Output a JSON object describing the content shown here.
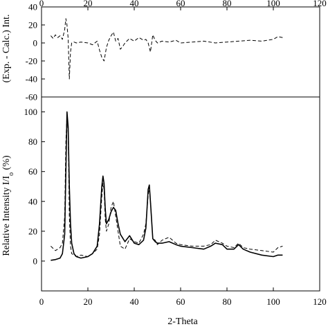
{
  "chart_data": [
    {
      "type": "line",
      "panel": "top",
      "ylabel": "(Exp. - Calc.) Int.",
      "xlabel": "",
      "xlim": [
        0,
        120
      ],
      "ylim": [
        -60,
        40
      ],
      "x_ticks": [
        "0",
        "20",
        "40",
        "60",
        "80",
        "100",
        "120"
      ],
      "y_ticks": [
        "40",
        "20",
        "0",
        "-20",
        "-40",
        "-60"
      ],
      "x_tick_position": "top",
      "grid": false,
      "series": [
        {
          "style": "dashed",
          "x": [
            4,
            5,
            6,
            7,
            8,
            9,
            10,
            10.5,
            11,
            11.5,
            12,
            12.5,
            13,
            14,
            15,
            17,
            20,
            22,
            24,
            25,
            26,
            27,
            28,
            29,
            30,
            31,
            32,
            33,
            34,
            35,
            36,
            38,
            40,
            42,
            44,
            45,
            46,
            47,
            48,
            49,
            50,
            52,
            55,
            58,
            60,
            65,
            70,
            75,
            80,
            85,
            90,
            95,
            100,
            102,
            104
          ],
          "y": [
            8,
            5,
            9,
            6,
            8,
            4,
            15,
            27,
            20,
            5,
            -40,
            -10,
            0,
            1,
            0,
            1,
            0,
            -2,
            2,
            -8,
            -16,
            -20,
            -5,
            3,
            8,
            12,
            2,
            5,
            -7,
            -4,
            0,
            5,
            2,
            6,
            3,
            4,
            0,
            -10,
            9,
            3,
            0,
            2,
            1,
            3,
            0,
            1,
            2,
            0,
            1,
            2,
            3,
            2,
            4,
            7,
            6
          ]
        }
      ]
    },
    {
      "type": "line",
      "panel": "bottom",
      "ylabel": "Relative Intensity I/I",
      "ylabel_subscript": "o",
      "ylabel_suffix": " (%)",
      "xlabel": "2-Theta",
      "xlim": [
        0,
        120
      ],
      "ylim": [
        -20,
        110
      ],
      "x_ticks": [
        "0",
        "20",
        "40",
        "60",
        "80",
        "100",
        "120"
      ],
      "y_ticks": [
        "100",
        "80",
        "60",
        "40",
        "20",
        "0"
      ],
      "grid": false,
      "series": [
        {
          "style": "solid",
          "x": [
            4,
            6,
            8,
            9,
            10,
            10.5,
            11,
            11.5,
            12,
            12.5,
            13,
            14,
            15,
            17,
            20,
            22,
            24,
            25,
            26,
            26.5,
            27,
            27.5,
            28,
            29,
            30,
            31,
            32,
            33,
            34,
            36,
            38,
            40,
            42,
            44,
            45,
            46,
            46.5,
            47,
            48,
            49,
            50,
            52,
            55,
            58,
            60,
            65,
            70,
            73,
            75,
            78,
            80,
            83,
            85,
            87,
            90,
            95,
            100,
            102,
            104
          ],
          "y": [
            0.5,
            1,
            2,
            5,
            18,
            60,
            100,
            90,
            50,
            25,
            12,
            5,
            3,
            2,
            3,
            5,
            10,
            25,
            50,
            57,
            52,
            35,
            25,
            28,
            33,
            36,
            34,
            25,
            18,
            13,
            17,
            12,
            11,
            14,
            22,
            48,
            51,
            40,
            15,
            13,
            12,
            12,
            13,
            11,
            10,
            9,
            8,
            10,
            12,
            11,
            8,
            8,
            11,
            8,
            6,
            4,
            3,
            4,
            4
          ]
        },
        {
          "style": "dashed",
          "x": [
            4,
            6,
            8,
            9,
            10,
            10.5,
            11,
            11.5,
            12,
            12.5,
            13,
            14,
            15,
            17,
            20,
            22,
            24,
            25,
            26,
            26.5,
            27,
            27.5,
            28,
            29,
            30,
            31,
            32,
            33,
            34,
            36,
            38,
            40,
            42,
            44,
            45,
            46,
            46.5,
            47,
            48,
            49,
            50,
            52,
            55,
            58,
            60,
            65,
            70,
            73,
            75,
            78,
            80,
            83,
            85,
            87,
            90,
            95,
            100,
            102,
            104
          ],
          "y": [
            10,
            7,
            9,
            12,
            30,
            80,
            98,
            86,
            30,
            10,
            5,
            4,
            3,
            4,
            3,
            5,
            8,
            18,
            43,
            52,
            48,
            28,
            20,
            25,
            36,
            40,
            30,
            20,
            10,
            8,
            15,
            13,
            12,
            18,
            25,
            44,
            50,
            40,
            15,
            14,
            11,
            14,
            16,
            12,
            11,
            10,
            10,
            11,
            14,
            12,
            10,
            9,
            12,
            9,
            8,
            7,
            6,
            9,
            10
          ]
        }
      ]
    }
  ]
}
